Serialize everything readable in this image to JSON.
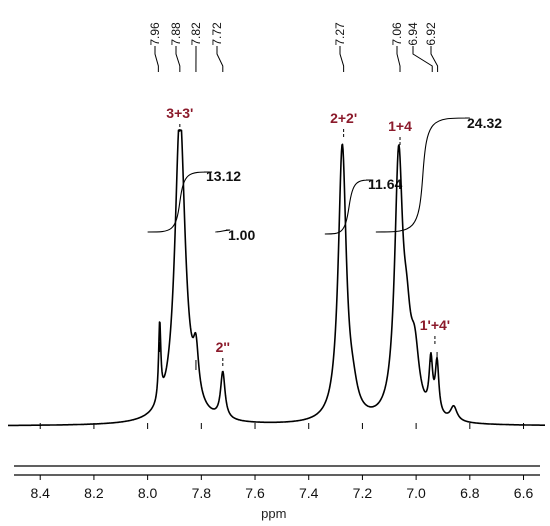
{
  "chart_data": {
    "type": "line",
    "xlabel": "ppm",
    "xlim": [
      8.52,
      6.52
    ],
    "x_reversed": true,
    "x_ticks": [
      "8.4",
      "8.2",
      "8.0",
      "7.8",
      "7.6",
      "7.4",
      "7.2",
      "7.0",
      "6.8",
      "6.6"
    ],
    "x_tick_values": [
      8.4,
      8.2,
      8.0,
      7.8,
      7.6,
      7.4,
      7.2,
      7.0,
      6.8,
      6.6
    ],
    "ylim": [
      0,
      1
    ],
    "grid": false,
    "line_color": "#000000",
    "label_color": "#8b1a2b",
    "peak_labels": [
      {
        "text": "7.96",
        "ppm": 7.96
      },
      {
        "text": "7.88",
        "ppm": 7.88
      },
      {
        "text": "7.82",
        "ppm": 7.82
      },
      {
        "text": "7.72",
        "ppm": 7.72
      },
      {
        "text": "7.27",
        "ppm": 7.27
      },
      {
        "text": "7.06",
        "ppm": 7.06
      },
      {
        "text": "6.94",
        "ppm": 6.94
      },
      {
        "text": "6.92",
        "ppm": 6.92
      }
    ],
    "peaks": [
      {
        "ppm": 7.955,
        "height": 0.27,
        "width": 0.005
      },
      {
        "ppm": 7.88,
        "height": 0.96,
        "width": 0.022
      },
      {
        "ppm": 7.87,
        "height": 0.12,
        "width": 0.035
      },
      {
        "ppm": 7.82,
        "height": 0.16,
        "width": 0.012
      },
      {
        "ppm": 7.72,
        "height": 0.16,
        "width": 0.01
      },
      {
        "ppm": 7.275,
        "height": 0.95,
        "width": 0.018
      },
      {
        "ppm": 7.235,
        "height": 0.06,
        "width": 0.02
      },
      {
        "ppm": 7.065,
        "height": 0.88,
        "width": 0.018
      },
      {
        "ppm": 7.035,
        "height": 0.22,
        "width": 0.018
      },
      {
        "ppm": 7.005,
        "height": 0.2,
        "width": 0.02
      },
      {
        "ppm": 6.945,
        "height": 0.18,
        "width": 0.008
      },
      {
        "ppm": 6.922,
        "height": 0.18,
        "width": 0.008
      },
      {
        "ppm": 6.86,
        "height": 0.05,
        "width": 0.015
      }
    ],
    "integrals": [
      {
        "value": "13.12",
        "from_ppm": 8.0,
        "to_ppm": 7.76
      },
      {
        "value": "1.00",
        "from_ppm": 7.745,
        "to_ppm": 7.695
      },
      {
        "value": "11.64",
        "from_ppm": 7.34,
        "to_ppm": 7.16
      },
      {
        "value": "24.32",
        "from_ppm": 7.15,
        "to_ppm": 6.8
      }
    ],
    "assignments": [
      {
        "text": "3+3'",
        "ppm": 7.88
      },
      {
        "text": "2+2'",
        "ppm": 7.27
      },
      {
        "text": "1+4",
        "ppm": 7.06
      },
      {
        "text": "2''",
        "ppm": 7.72
      },
      {
        "text": "1'+4'",
        "ppm": 6.93
      }
    ]
  }
}
